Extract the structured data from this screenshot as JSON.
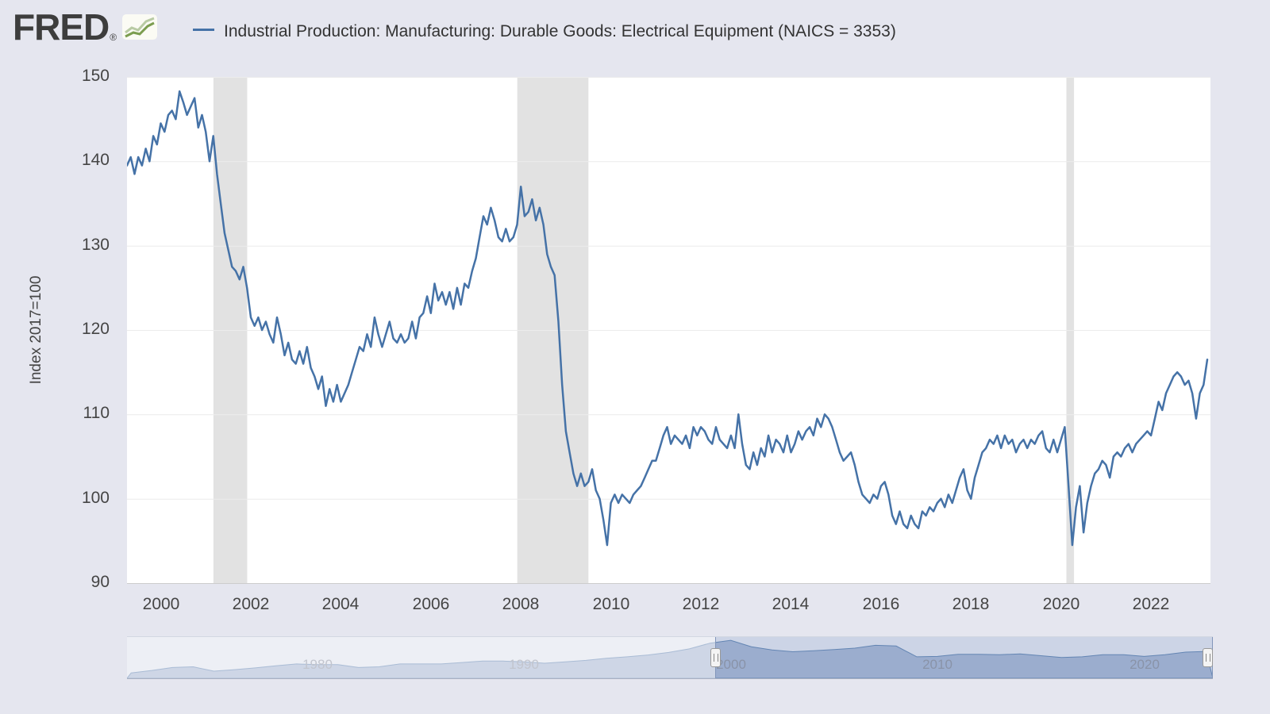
{
  "header": {
    "logo_text": "FRED",
    "logo_registered": "®",
    "series_legend": "Industrial Production: Manufacturing: Durable Goods: Electrical Equipment (NAICS = 3353)"
  },
  "colors": {
    "series_line": "#4572a7",
    "page_background": "#e5e6ef",
    "plot_background": "#ffffff",
    "recession_band": "#e2e2e2",
    "gridline": "#ececec",
    "axis_text": "#454545",
    "nav_area_fill": "rgba(124,148,188,0.55)",
    "nav_area_stroke": "#6688b4",
    "nav_selection": "rgba(93,124,178,0.22)"
  },
  "chart_data": {
    "type": "line",
    "title": "Industrial Production: Manufacturing: Durable Goods: Electrical Equipment (NAICS = 3353)",
    "ylabel": "Index 2017=100",
    "legend_position": "top",
    "grid": "horizontal",
    "x_start": 1999.25,
    "x_step": 0.0833333,
    "xlim": [
      1999.25,
      2023.32
    ],
    "ylim": [
      90,
      150
    ],
    "y_ticks": [
      150,
      140,
      130,
      120,
      110,
      100,
      90
    ],
    "x_ticks": [
      2000,
      2002,
      2004,
      2006,
      2008,
      2010,
      2012,
      2014,
      2016,
      2018,
      2020,
      2022
    ],
    "recession_shading": [
      [
        2001.17,
        2001.92
      ],
      [
        2007.92,
        2009.5
      ],
      [
        2020.12,
        2020.29
      ]
    ],
    "values": [
      139.5,
      140.5,
      138.5,
      140.5,
      139.5,
      141.5,
      140.0,
      143.0,
      142.0,
      144.5,
      143.5,
      145.5,
      146.0,
      145.0,
      148.3,
      147.0,
      145.5,
      146.5,
      147.5,
      144.0,
      145.5,
      143.5,
      140.0,
      143.0,
      138.5,
      135.0,
      131.5,
      129.5,
      127.5,
      127.0,
      126.0,
      127.5,
      125.0,
      121.5,
      120.5,
      121.5,
      120.0,
      121.0,
      119.5,
      118.5,
      121.5,
      119.5,
      117.0,
      118.5,
      116.5,
      116.0,
      117.5,
      116.0,
      118.0,
      115.5,
      114.5,
      113.0,
      114.5,
      111.0,
      113.0,
      111.5,
      113.5,
      111.5,
      112.5,
      113.5,
      115.0,
      116.5,
      118.0,
      117.5,
      119.5,
      118.0,
      121.5,
      119.5,
      118.0,
      119.5,
      121.0,
      119.0,
      118.5,
      119.5,
      118.5,
      119.0,
      121.0,
      119.0,
      121.5,
      122.0,
      124.0,
      122.0,
      125.5,
      123.5,
      124.5,
      123.0,
      124.5,
      122.5,
      125.0,
      123.0,
      125.5,
      125.0,
      127.0,
      128.5,
      131.0,
      133.5,
      132.5,
      134.5,
      133.0,
      131.0,
      130.5,
      132.0,
      130.5,
      131.0,
      132.5,
      137.0,
      133.5,
      134.0,
      135.5,
      133.0,
      134.5,
      132.5,
      129.0,
      127.5,
      126.5,
      121.0,
      113.5,
      108.0,
      105.5,
      103.0,
      101.5,
      103.0,
      101.5,
      102.0,
      103.5,
      101.0,
      100.0,
      97.5,
      94.5,
      99.5,
      100.5,
      99.5,
      100.5,
      100.0,
      99.5,
      100.5,
      101.0,
      101.5,
      102.5,
      103.5,
      104.5,
      104.5,
      106.0,
      107.5,
      108.5,
      106.5,
      107.5,
      107.0,
      106.5,
      107.5,
      106.0,
      108.5,
      107.5,
      108.5,
      108.0,
      107.0,
      106.5,
      108.5,
      107.0,
      106.5,
      106.0,
      107.5,
      106.0,
      110.0,
      106.5,
      104.0,
      103.5,
      105.5,
      104.0,
      106.0,
      105.0,
      107.5,
      105.5,
      107.0,
      106.5,
      105.5,
      107.5,
      105.5,
      106.5,
      108.0,
      107.0,
      108.0,
      108.5,
      107.5,
      109.5,
      108.5,
      110.0,
      109.5,
      108.5,
      107.0,
      105.5,
      104.5,
      105.0,
      105.5,
      104.0,
      102.0,
      100.5,
      100.0,
      99.5,
      100.5,
      100.0,
      101.5,
      102.0,
      100.5,
      98.0,
      97.0,
      98.5,
      97.0,
      96.5,
      98.0,
      97.0,
      96.5,
      98.5,
      98.0,
      99.0,
      98.5,
      99.5,
      100.0,
      99.0,
      100.5,
      99.5,
      101.0,
      102.5,
      103.5,
      101.0,
      100.0,
      102.5,
      104.0,
      105.5,
      106.0,
      107.0,
      106.5,
      107.5,
      106.0,
      107.5,
      106.5,
      107.0,
      105.5,
      106.5,
      107.0,
      106.0,
      107.0,
      106.5,
      107.5,
      108.0,
      106.0,
      105.5,
      107.0,
      105.5,
      107.0,
      108.5,
      101.5,
      94.5,
      99.0,
      101.5,
      96.0,
      99.5,
      101.5,
      103.0,
      103.5,
      104.5,
      104.0,
      102.5,
      105.0,
      105.5,
      105.0,
      106.0,
      106.5,
      105.5,
      106.5,
      107.0,
      107.5,
      108.0,
      107.5,
      109.5,
      111.5,
      110.5,
      112.5,
      113.5,
      114.5,
      115.0,
      114.5,
      113.5,
      114.0,
      112.5,
      109.5,
      112.5,
      113.5,
      116.5
    ]
  },
  "navigator": {
    "x_start": 1971,
    "x_step": 1,
    "xlim": [
      1970.8,
      2023.32
    ],
    "ylim": [
      40,
      155
    ],
    "year_labels": [
      1980,
      1990,
      2000,
      2010,
      2020
    ],
    "selection": [
      1999.25,
      2023.32
    ],
    "values": [
      55,
      62,
      70,
      72,
      60,
      64,
      69,
      75,
      80,
      78,
      78,
      70,
      72,
      80,
      80,
      80,
      84,
      88,
      88,
      86,
      82,
      86,
      90,
      96,
      100,
      105,
      112,
      122,
      138,
      146,
      128,
      119,
      114,
      117,
      120,
      124,
      132,
      130,
      100,
      101,
      107,
      107,
      106,
      108,
      103,
      98,
      100,
      106,
      106,
      101,
      106,
      113,
      115
    ]
  }
}
